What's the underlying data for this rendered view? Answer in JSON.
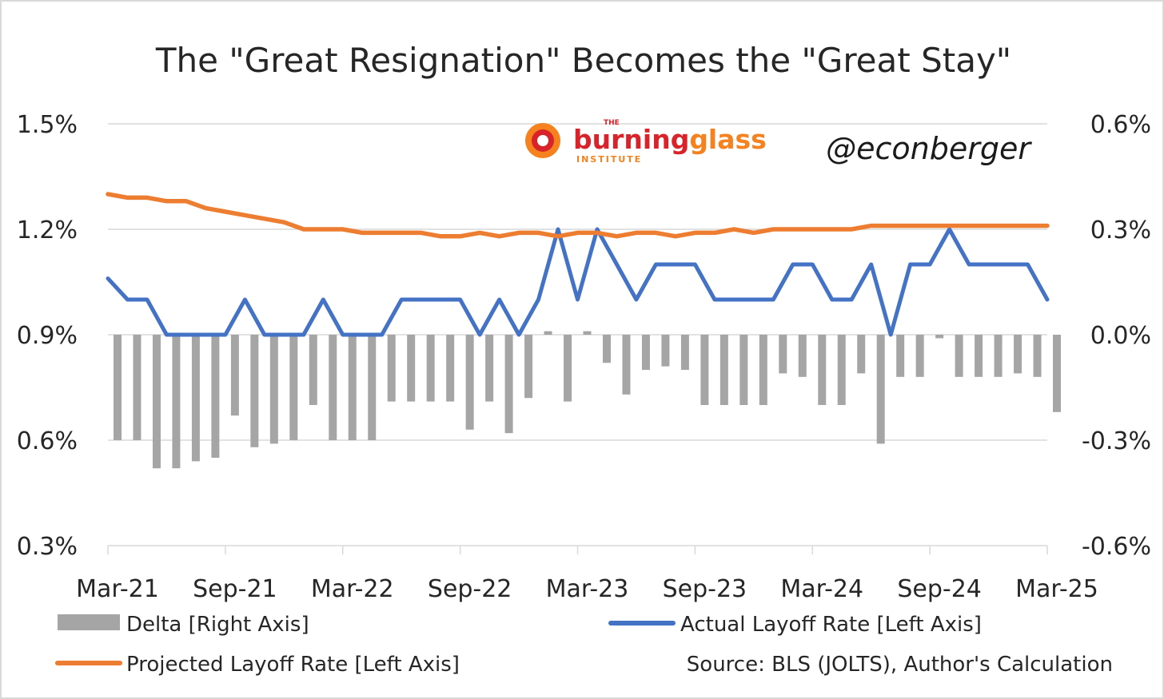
{
  "chart_data": {
    "type": "line",
    "title": "The \"Great Resignation\" Becomes the \"Great Stay\"",
    "x_tick_labels": [
      "Mar-21",
      "Sep-21",
      "Mar-22",
      "Sep-22",
      "Mar-23",
      "Sep-23",
      "Mar-24",
      "Sep-24",
      "Mar-25"
    ],
    "x": [
      "Mar-21",
      "Apr-21",
      "May-21",
      "Jun-21",
      "Jul-21",
      "Aug-21",
      "Sep-21",
      "Oct-21",
      "Nov-21",
      "Dec-21",
      "Jan-22",
      "Feb-22",
      "Mar-22",
      "Apr-22",
      "May-22",
      "Jun-22",
      "Jul-22",
      "Aug-22",
      "Sep-22",
      "Oct-22",
      "Nov-22",
      "Dec-22",
      "Jan-23",
      "Feb-23",
      "Mar-23",
      "Apr-23",
      "May-23",
      "Jun-23",
      "Jul-23",
      "Aug-23",
      "Sep-23",
      "Oct-23",
      "Nov-23",
      "Dec-23",
      "Jan-24",
      "Feb-24",
      "Mar-24",
      "Apr-24",
      "May-24",
      "Jun-24",
      "Jul-24",
      "Aug-24",
      "Sep-24",
      "Oct-24",
      "Nov-24",
      "Dec-24",
      "Jan-25",
      "Feb-25",
      "Mar-25"
    ],
    "left_axis": {
      "ylim": [
        0.3,
        1.5
      ],
      "tick_labels": [
        "0.3%",
        "0.6%",
        "0.9%",
        "1.2%",
        "1.5%"
      ]
    },
    "right_axis": {
      "ylim": [
        -0.6,
        0.6
      ],
      "tick_labels": [
        "-0.6%",
        "-0.3%",
        "0.0%",
        "0.3%",
        "0.6%"
      ]
    },
    "grid": true,
    "legend_position": "bottom",
    "series": [
      {
        "name": "Delta [Right Axis]",
        "kind": "bar",
        "axis": "right",
        "color": "#a5a5a5",
        "values": [
          -0.3,
          -0.3,
          -0.38,
          -0.38,
          -0.36,
          -0.35,
          -0.23,
          -0.32,
          -0.31,
          -0.3,
          -0.2,
          -0.3,
          -0.3,
          -0.3,
          -0.19,
          -0.19,
          -0.19,
          -0.19,
          -0.27,
          -0.19,
          -0.28,
          -0.18,
          0.01,
          -0.19,
          0.01,
          -0.08,
          -0.17,
          -0.1,
          -0.09,
          -0.1,
          -0.2,
          -0.2,
          -0.2,
          -0.2,
          -0.11,
          -0.12,
          -0.2,
          -0.2,
          -0.11,
          -0.31,
          -0.12,
          -0.12,
          -0.01,
          -0.12,
          -0.12,
          -0.12,
          -0.11,
          -0.12,
          -0.22
        ]
      },
      {
        "name": "Actual Layoff Rate [Left Axis]",
        "kind": "line",
        "axis": "left",
        "color": "#4472c4",
        "values": [
          1.06,
          1.0,
          1.0,
          0.9,
          0.9,
          0.9,
          0.9,
          1.0,
          0.9,
          0.9,
          0.9,
          1.0,
          0.9,
          0.9,
          0.9,
          1.0,
          1.0,
          1.0,
          1.0,
          0.9,
          1.0,
          0.9,
          1.0,
          1.2,
          1.0,
          1.2,
          1.1,
          1.0,
          1.1,
          1.1,
          1.1,
          1.0,
          1.0,
          1.0,
          1.0,
          1.1,
          1.1,
          1.0,
          1.0,
          1.1,
          0.9,
          1.1,
          1.1,
          1.2,
          1.1,
          1.1,
          1.1,
          1.1,
          1.0
        ]
      },
      {
        "name": "Projected Layoff Rate [Left Axis]",
        "kind": "line",
        "axis": "left",
        "color": "#ed7d31",
        "values": [
          1.3,
          1.29,
          1.29,
          1.28,
          1.28,
          1.26,
          1.25,
          1.24,
          1.23,
          1.22,
          1.2,
          1.2,
          1.2,
          1.19,
          1.19,
          1.19,
          1.19,
          1.18,
          1.18,
          1.19,
          1.18,
          1.19,
          1.19,
          1.18,
          1.19,
          1.19,
          1.18,
          1.19,
          1.19,
          1.18,
          1.19,
          1.19,
          1.2,
          1.19,
          1.2,
          1.2,
          1.2,
          1.2,
          1.2,
          1.21,
          1.21,
          1.21,
          1.21,
          1.21,
          1.21,
          1.21,
          1.21,
          1.21,
          1.21
        ]
      }
    ],
    "source": "Source: BLS (JOLTS), Author's Calculation"
  },
  "logo": {
    "small": "THE",
    "word1": "burning",
    "word2": "glass",
    "sub": "INSTITUTE",
    "color_red": "#d8232a",
    "color_orange": "#f5821f"
  },
  "watermark": "@econberger"
}
